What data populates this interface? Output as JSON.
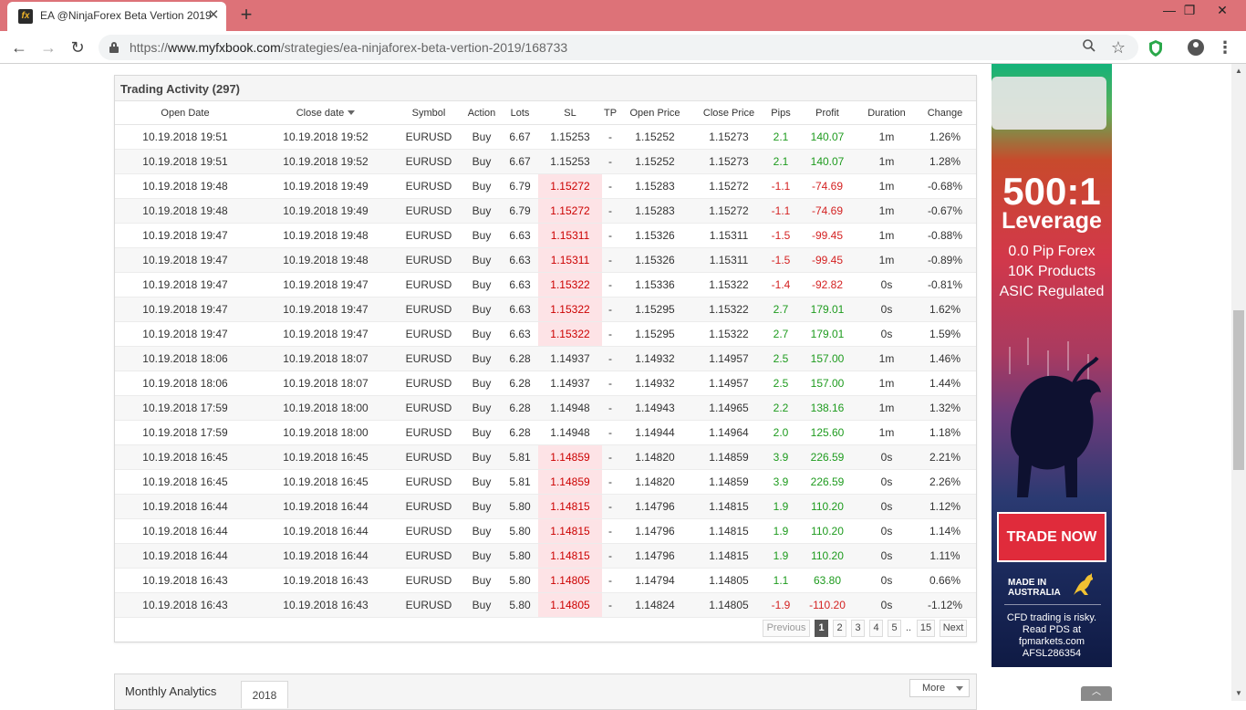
{
  "browser": {
    "tab_title": "EA @NinjaForex Beta Vertion 2019",
    "tab_favicon_glyph": "fx",
    "tab_close": "✕",
    "new_tab": "+",
    "window_minimize": "—",
    "window_restore": "❐",
    "window_close": "✕",
    "url_scheme": "https://",
    "url_host": "www.myfxbook.com",
    "url_path": "/strategies/ea-ninjaforex-beta-vertion-2019/168733",
    "back": "←",
    "forward": "→",
    "reload": "↻",
    "zoom_icon": "🔍",
    "star_icon": "☆",
    "menu_icon": "⋮"
  },
  "trading_activity": {
    "title": "Trading Activity (297)",
    "columns": [
      "Open Date",
      "Close date",
      "Symbol",
      "Action",
      "Lots",
      "SL",
      "TP",
      "Open Price",
      "Close Price",
      "Pips",
      "Profit",
      "Duration",
      "Change"
    ],
    "sorted_column": "Close date",
    "rows": [
      {
        "open": "10.19.2018 19:51",
        "close": "10.19.2018 19:52",
        "symbol": "EURUSD",
        "action": "Buy",
        "lots": "6.67",
        "sl": "1.15253",
        "sl_hit": false,
        "tp": "-",
        "open_price": "1.15252",
        "close_price": "1.15273",
        "pips": "2.1",
        "profit": "140.07",
        "duration": "1m",
        "change": "1.26%"
      },
      {
        "open": "10.19.2018 19:51",
        "close": "10.19.2018 19:52",
        "symbol": "EURUSD",
        "action": "Buy",
        "lots": "6.67",
        "sl": "1.15253",
        "sl_hit": false,
        "tp": "-",
        "open_price": "1.15252",
        "close_price": "1.15273",
        "pips": "2.1",
        "profit": "140.07",
        "duration": "1m",
        "change": "1.28%"
      },
      {
        "open": "10.19.2018 19:48",
        "close": "10.19.2018 19:49",
        "symbol": "EURUSD",
        "action": "Buy",
        "lots": "6.79",
        "sl": "1.15272",
        "sl_hit": true,
        "tp": "-",
        "open_price": "1.15283",
        "close_price": "1.15272",
        "pips": "-1.1",
        "profit": "-74.69",
        "duration": "1m",
        "change": "-0.68%"
      },
      {
        "open": "10.19.2018 19:48",
        "close": "10.19.2018 19:49",
        "symbol": "EURUSD",
        "action": "Buy",
        "lots": "6.79",
        "sl": "1.15272",
        "sl_hit": true,
        "tp": "-",
        "open_price": "1.15283",
        "close_price": "1.15272",
        "pips": "-1.1",
        "profit": "-74.69",
        "duration": "1m",
        "change": "-0.67%"
      },
      {
        "open": "10.19.2018 19:47",
        "close": "10.19.2018 19:48",
        "symbol": "EURUSD",
        "action": "Buy",
        "lots": "6.63",
        "sl": "1.15311",
        "sl_hit": true,
        "tp": "-",
        "open_price": "1.15326",
        "close_price": "1.15311",
        "pips": "-1.5",
        "profit": "-99.45",
        "duration": "1m",
        "change": "-0.88%"
      },
      {
        "open": "10.19.2018 19:47",
        "close": "10.19.2018 19:48",
        "symbol": "EURUSD",
        "action": "Buy",
        "lots": "6.63",
        "sl": "1.15311",
        "sl_hit": true,
        "tp": "-",
        "open_price": "1.15326",
        "close_price": "1.15311",
        "pips": "-1.5",
        "profit": "-99.45",
        "duration": "1m",
        "change": "-0.89%"
      },
      {
        "open": "10.19.2018 19:47",
        "close": "10.19.2018 19:47",
        "symbol": "EURUSD",
        "action": "Buy",
        "lots": "6.63",
        "sl": "1.15322",
        "sl_hit": true,
        "tp": "-",
        "open_price": "1.15336",
        "close_price": "1.15322",
        "pips": "-1.4",
        "profit": "-92.82",
        "duration": "0s",
        "change": "-0.81%"
      },
      {
        "open": "10.19.2018 19:47",
        "close": "10.19.2018 19:47",
        "symbol": "EURUSD",
        "action": "Buy",
        "lots": "6.63",
        "sl": "1.15322",
        "sl_hit": true,
        "tp": "-",
        "open_price": "1.15295",
        "close_price": "1.15322",
        "pips": "2.7",
        "profit": "179.01",
        "duration": "0s",
        "change": "1.62%"
      },
      {
        "open": "10.19.2018 19:47",
        "close": "10.19.2018 19:47",
        "symbol": "EURUSD",
        "action": "Buy",
        "lots": "6.63",
        "sl": "1.15322",
        "sl_hit": true,
        "tp": "-",
        "open_price": "1.15295",
        "close_price": "1.15322",
        "pips": "2.7",
        "profit": "179.01",
        "duration": "0s",
        "change": "1.59%"
      },
      {
        "open": "10.19.2018 18:06",
        "close": "10.19.2018 18:07",
        "symbol": "EURUSD",
        "action": "Buy",
        "lots": "6.28",
        "sl": "1.14937",
        "sl_hit": false,
        "tp": "-",
        "open_price": "1.14932",
        "close_price": "1.14957",
        "pips": "2.5",
        "profit": "157.00",
        "duration": "1m",
        "change": "1.46%"
      },
      {
        "open": "10.19.2018 18:06",
        "close": "10.19.2018 18:07",
        "symbol": "EURUSD",
        "action": "Buy",
        "lots": "6.28",
        "sl": "1.14937",
        "sl_hit": false,
        "tp": "-",
        "open_price": "1.14932",
        "close_price": "1.14957",
        "pips": "2.5",
        "profit": "157.00",
        "duration": "1m",
        "change": "1.44%"
      },
      {
        "open": "10.19.2018 17:59",
        "close": "10.19.2018 18:00",
        "symbol": "EURUSD",
        "action": "Buy",
        "lots": "6.28",
        "sl": "1.14948",
        "sl_hit": false,
        "tp": "-",
        "open_price": "1.14943",
        "close_price": "1.14965",
        "pips": "2.2",
        "profit": "138.16",
        "duration": "1m",
        "change": "1.32%"
      },
      {
        "open": "10.19.2018 17:59",
        "close": "10.19.2018 18:00",
        "symbol": "EURUSD",
        "action": "Buy",
        "lots": "6.28",
        "sl": "1.14948",
        "sl_hit": false,
        "tp": "-",
        "open_price": "1.14944",
        "close_price": "1.14964",
        "pips": "2.0",
        "profit": "125.60",
        "duration": "1m",
        "change": "1.18%"
      },
      {
        "open": "10.19.2018 16:45",
        "close": "10.19.2018 16:45",
        "symbol": "EURUSD",
        "action": "Buy",
        "lots": "5.81",
        "sl": "1.14859",
        "sl_hit": true,
        "tp": "-",
        "open_price": "1.14820",
        "close_price": "1.14859",
        "pips": "3.9",
        "profit": "226.59",
        "duration": "0s",
        "change": "2.21%"
      },
      {
        "open": "10.19.2018 16:45",
        "close": "10.19.2018 16:45",
        "symbol": "EURUSD",
        "action": "Buy",
        "lots": "5.81",
        "sl": "1.14859",
        "sl_hit": true,
        "tp": "-",
        "open_price": "1.14820",
        "close_price": "1.14859",
        "pips": "3.9",
        "profit": "226.59",
        "duration": "0s",
        "change": "2.26%"
      },
      {
        "open": "10.19.2018 16:44",
        "close": "10.19.2018 16:44",
        "symbol": "EURUSD",
        "action": "Buy",
        "lots": "5.80",
        "sl": "1.14815",
        "sl_hit": true,
        "tp": "-",
        "open_price": "1.14796",
        "close_price": "1.14815",
        "pips": "1.9",
        "profit": "110.20",
        "duration": "0s",
        "change": "1.12%"
      },
      {
        "open": "10.19.2018 16:44",
        "close": "10.19.2018 16:44",
        "symbol": "EURUSD",
        "action": "Buy",
        "lots": "5.80",
        "sl": "1.14815",
        "sl_hit": true,
        "tp": "-",
        "open_price": "1.14796",
        "close_price": "1.14815",
        "pips": "1.9",
        "profit": "110.20",
        "duration": "0s",
        "change": "1.14%"
      },
      {
        "open": "10.19.2018 16:44",
        "close": "10.19.2018 16:44",
        "symbol": "EURUSD",
        "action": "Buy",
        "lots": "5.80",
        "sl": "1.14815",
        "sl_hit": true,
        "tp": "-",
        "open_price": "1.14796",
        "close_price": "1.14815",
        "pips": "1.9",
        "profit": "110.20",
        "duration": "0s",
        "change": "1.11%"
      },
      {
        "open": "10.19.2018 16:43",
        "close": "10.19.2018 16:43",
        "symbol": "EURUSD",
        "action": "Buy",
        "lots": "5.80",
        "sl": "1.14805",
        "sl_hit": true,
        "tp": "-",
        "open_price": "1.14794",
        "close_price": "1.14805",
        "pips": "1.1",
        "profit": "63.80",
        "duration": "0s",
        "change": "0.66%"
      },
      {
        "open": "10.19.2018 16:43",
        "close": "10.19.2018 16:43",
        "symbol": "EURUSD",
        "action": "Buy",
        "lots": "5.80",
        "sl": "1.14805",
        "sl_hit": true,
        "tp": "-",
        "open_price": "1.14824",
        "close_price": "1.14805",
        "pips": "-1.9",
        "profit": "-110.20",
        "duration": "0s",
        "change": "-1.12%"
      }
    ],
    "pagination": {
      "previous": "Previous",
      "pages": [
        "1",
        "2",
        "3",
        "4",
        "5"
      ],
      "ellipsis": "..",
      "last": "15",
      "next": "Next",
      "current": "1"
    }
  },
  "monthly_analytics": {
    "title": "Monthly Analytics",
    "year_tab": "2018",
    "more": "More"
  },
  "ad": {
    "headline": "500:1",
    "subheadline": "Leverage",
    "lines": [
      "0.0 Pip Forex",
      "10K Products",
      "ASIC Regulated"
    ],
    "cta": "TRADE NOW",
    "made_in": [
      "MADE IN",
      "AUSTRALIA"
    ],
    "risk_lines": [
      "CFD trading is risky.",
      "Read PDS at",
      "fpmarkets.com",
      "AFSL286354"
    ]
  },
  "colors": {
    "titlebar": "#dd7278",
    "profit_positive": "#1e9b1e",
    "profit_negative": "#d42222",
    "sl_highlight": "#fde3e6",
    "ad_cta": "#e02b3b",
    "pager_active": "#555555"
  },
  "scroll_to_top": "︿"
}
